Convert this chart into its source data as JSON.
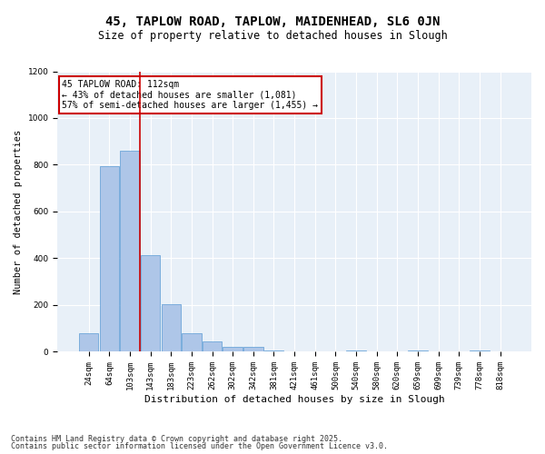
{
  "title1": "45, TAPLOW ROAD, TAPLOW, MAIDENHEAD, SL6 0JN",
  "title2": "Size of property relative to detached houses in Slough",
  "xlabel": "Distribution of detached houses by size in Slough",
  "ylabel": "Number of detached properties",
  "categories": [
    "24sqm",
    "64sqm",
    "103sqm",
    "143sqm",
    "183sqm",
    "223sqm",
    "262sqm",
    "302sqm",
    "342sqm",
    "381sqm",
    "421sqm",
    "461sqm",
    "500sqm",
    "540sqm",
    "580sqm",
    "620sqm",
    "659sqm",
    "699sqm",
    "739sqm",
    "778sqm",
    "818sqm"
  ],
  "values": [
    80,
    795,
    860,
    415,
    205,
    80,
    45,
    20,
    20,
    5,
    0,
    0,
    0,
    5,
    0,
    0,
    5,
    0,
    0,
    5,
    0
  ],
  "bar_color": "#aec6e8",
  "bar_edge_color": "#5b9bd5",
  "vline_x": 2.5,
  "vline_color": "#cc0000",
  "annotation_text": "45 TAPLOW ROAD: 112sqm\n← 43% of detached houses are smaller (1,081)\n57% of semi-detached houses are larger (1,455) →",
  "annotation_box_color": "#cc0000",
  "annotation_box_facecolor": "white",
  "ylim": [
    0,
    1200
  ],
  "yticks": [
    0,
    200,
    400,
    600,
    800,
    1000,
    1200
  ],
  "background_color": "#e8f0f8",
  "grid_color": "white",
  "footer1": "Contains HM Land Registry data © Crown copyright and database right 2025.",
  "footer2": "Contains public sector information licensed under the Open Government Licence v3.0.",
  "title1_fontsize": 10,
  "title2_fontsize": 8.5,
  "xlabel_fontsize": 8,
  "ylabel_fontsize": 7.5,
  "tick_fontsize": 6.5,
  "annotation_fontsize": 7,
  "footer_fontsize": 6
}
